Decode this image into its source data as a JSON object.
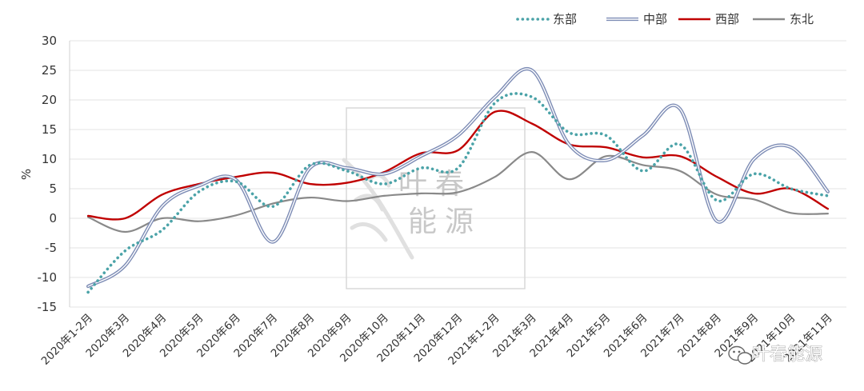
{
  "chart_data": {
    "type": "line",
    "ylabel": "%",
    "ylim": [
      -15,
      30
    ],
    "yticks": [
      -15,
      -10,
      -5,
      0,
      5,
      10,
      15,
      20,
      25,
      30
    ],
    "grid": true,
    "legend_position": "top-right",
    "categories": [
      "2020年1-2月",
      "2020年3月",
      "2020年4月",
      "2020年5月",
      "2020年6月",
      "2020年7月",
      "2020年8月",
      "2020年9月",
      "2020年10月",
      "2020年11月",
      "2020年12月",
      "2021年1-2月",
      "2021年3月",
      "2021年4月",
      "2021年5月",
      "2021年6月",
      "2021年7月",
      "2021年8月",
      "2021年9月",
      "2021年10月",
      "2021年11月"
    ],
    "series": [
      {
        "name": "东部",
        "color": "#4ba3a8",
        "style": "dotted",
        "values": [
          -12.5,
          -5.5,
          -2.0,
          4.5,
          6.2,
          2.0,
          9.0,
          8.0,
          5.8,
          8.5,
          8.5,
          19.5,
          20.5,
          14.5,
          14.0,
          8.0,
          12.5,
          3.0,
          7.5,
          5.0,
          3.8
        ]
      },
      {
        "name": "中部",
        "color": "#7d8cb5",
        "style": "double",
        "values": [
          -11.5,
          -8.0,
          2.0,
          5.5,
          6.5,
          -4.0,
          8.5,
          8.5,
          7.5,
          10.5,
          14.0,
          20.5,
          25.0,
          12.5,
          9.8,
          14.0,
          18.5,
          -0.5,
          10.0,
          12.0,
          4.5
        ]
      },
      {
        "name": "西部",
        "color": "#c00000",
        "style": "solid",
        "values": [
          0.4,
          0.0,
          4.0,
          5.8,
          7.0,
          7.7,
          5.8,
          6.0,
          7.8,
          11.0,
          11.5,
          18.0,
          16.0,
          12.5,
          12.0,
          10.3,
          10.5,
          7.0,
          4.2,
          5.0,
          1.6
        ]
      },
      {
        "name": "东北",
        "color": "#898989",
        "style": "solid",
        "values": [
          0.2,
          -2.3,
          0.0,
          -0.5,
          0.5,
          2.5,
          3.5,
          2.9,
          3.8,
          4.2,
          4.4,
          7.0,
          11.2,
          6.6,
          10.5,
          9.0,
          8.0,
          4.0,
          3.2,
          0.9,
          0.8
        ]
      }
    ]
  },
  "watermark": {
    "line1": "叶春",
    "line2": "能源"
  },
  "brand": {
    "text": "叶春能源",
    "icon": "wechat-icon"
  }
}
